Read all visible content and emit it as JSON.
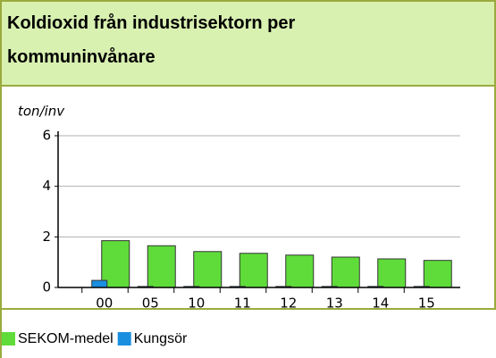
{
  "chart_data": {
    "type": "bar",
    "title": "Koldioxid från industrisektorn per kommuninvånare",
    "y_label": "ton/inv",
    "categories": [
      "00",
      "05",
      "10",
      "11",
      "12",
      "13",
      "14",
      "15"
    ],
    "series": [
      {
        "name": "SEKOM-medel",
        "color": "#5fdc3a",
        "values": [
          1.85,
          1.65,
          1.42,
          1.35,
          1.28,
          1.2,
          1.13,
          1.07
        ]
      },
      {
        "name": "Kungsör",
        "color": "#1a8fe0",
        "values": [
          0.28,
          0.04,
          0.04,
          0.04,
          0.04,
          0.04,
          0.04,
          0.04
        ]
      }
    ],
    "ylim": [
      0,
      6
    ],
    "yticks": [
      0,
      2,
      4,
      6
    ],
    "grid": true
  }
}
